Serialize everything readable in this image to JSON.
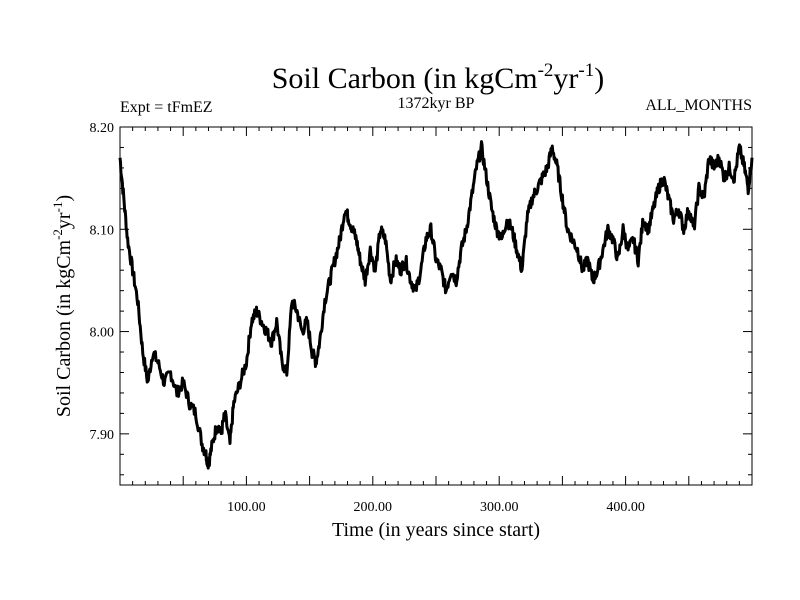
{
  "chart_data": {
    "type": "line",
    "title_main": "Soil Carbon (in kgCm",
    "title_sup1": "-2",
    "title_mid": "yr",
    "title_sup2": "-1",
    "title_end": ")",
    "subtitle_left": "Expt = tFmEZ",
    "subtitle_center": "1372kyr BP",
    "subtitle_right": "ALL_MONTHS",
    "xlabel": "Time (in years since start)",
    "ylabel_main": "Soil Carbon (in kgCm",
    "ylabel_sup1": "-2",
    "ylabel_mid": "yr",
    "ylabel_sup2": "-1",
    "ylabel_end": ")",
    "xlim": [
      0,
      500
    ],
    "ylim": [
      7.85,
      8.2
    ],
    "xticks": [
      100,
      200,
      300,
      400
    ],
    "xtick_labels": [
      "100.00",
      "200.00",
      "300.00",
      "400.00"
    ],
    "yticks": [
      7.9,
      8.0,
      8.1,
      8.2
    ],
    "ytick_labels": [
      "7.90",
      "8.00",
      "8.10",
      "8.20"
    ],
    "series": [
      {
        "name": "Soil Carbon",
        "x": [
          0,
          3,
          6,
          10,
          14,
          18,
          22,
          26,
          30,
          35,
          40,
          45,
          50,
          55,
          60,
          65,
          68,
          70,
          73,
          77,
          80,
          83,
          87,
          90,
          95,
          100,
          104,
          108,
          112,
          116,
          120,
          124,
          128,
          132,
          136,
          140,
          144,
          148,
          152,
          155,
          158,
          162,
          166,
          170,
          174,
          178,
          181,
          184,
          187,
          190,
          194,
          198,
          202,
          206,
          210,
          214,
          218,
          222,
          226,
          230,
          234,
          238,
          242,
          246,
          250,
          254,
          258,
          262,
          266,
          270,
          274,
          278,
          282,
          286,
          290,
          294,
          298,
          302,
          306,
          310,
          314,
          318,
          322,
          326,
          330,
          334,
          338,
          342,
          346,
          350,
          354,
          358,
          362,
          366,
          370,
          374,
          378,
          382,
          386,
          390,
          394,
          398,
          402,
          406,
          410,
          414,
          418,
          422,
          426,
          430,
          434,
          438,
          442,
          446,
          450,
          454,
          458,
          462,
          466,
          470,
          474,
          478,
          482,
          486,
          490,
          494,
          497,
          500
        ],
        "y": [
          8.17,
          8.13,
          8.09,
          8.06,
          8.03,
          7.98,
          7.95,
          7.98,
          7.97,
          7.95,
          7.96,
          7.94,
          7.95,
          7.93,
          7.92,
          7.89,
          7.88,
          7.87,
          7.89,
          7.91,
          7.9,
          7.92,
          7.89,
          7.93,
          7.95,
          7.97,
          8.01,
          8.02,
          8.01,
          8.0,
          7.99,
          8.01,
          7.97,
          7.96,
          8.03,
          8.02,
          8.0,
          8.01,
          7.98,
          7.97,
          7.99,
          8.03,
          8.05,
          8.07,
          8.09,
          8.12,
          8.11,
          8.1,
          8.09,
          8.07,
          8.05,
          8.08,
          8.06,
          8.1,
          8.09,
          8.05,
          8.07,
          8.06,
          8.07,
          8.05,
          8.04,
          8.06,
          8.09,
          8.1,
          8.07,
          8.06,
          8.04,
          8.06,
          8.05,
          8.08,
          8.1,
          8.13,
          8.16,
          8.18,
          8.15,
          8.12,
          8.1,
          8.09,
          8.11,
          8.1,
          8.08,
          8.06,
          8.11,
          8.13,
          8.14,
          8.15,
          8.16,
          8.18,
          8.16,
          8.13,
          8.1,
          8.09,
          8.08,
          8.06,
          8.07,
          8.05,
          8.06,
          8.08,
          8.1,
          8.09,
          8.07,
          8.1,
          8.08,
          8.09,
          8.07,
          8.11,
          8.1,
          8.12,
          8.14,
          8.15,
          8.13,
          8.11,
          8.12,
          8.1,
          8.12,
          8.1,
          8.14,
          8.13,
          8.17,
          8.16,
          8.17,
          8.15,
          8.16,
          8.15,
          8.18,
          8.16,
          8.14,
          8.17
        ]
      }
    ]
  }
}
